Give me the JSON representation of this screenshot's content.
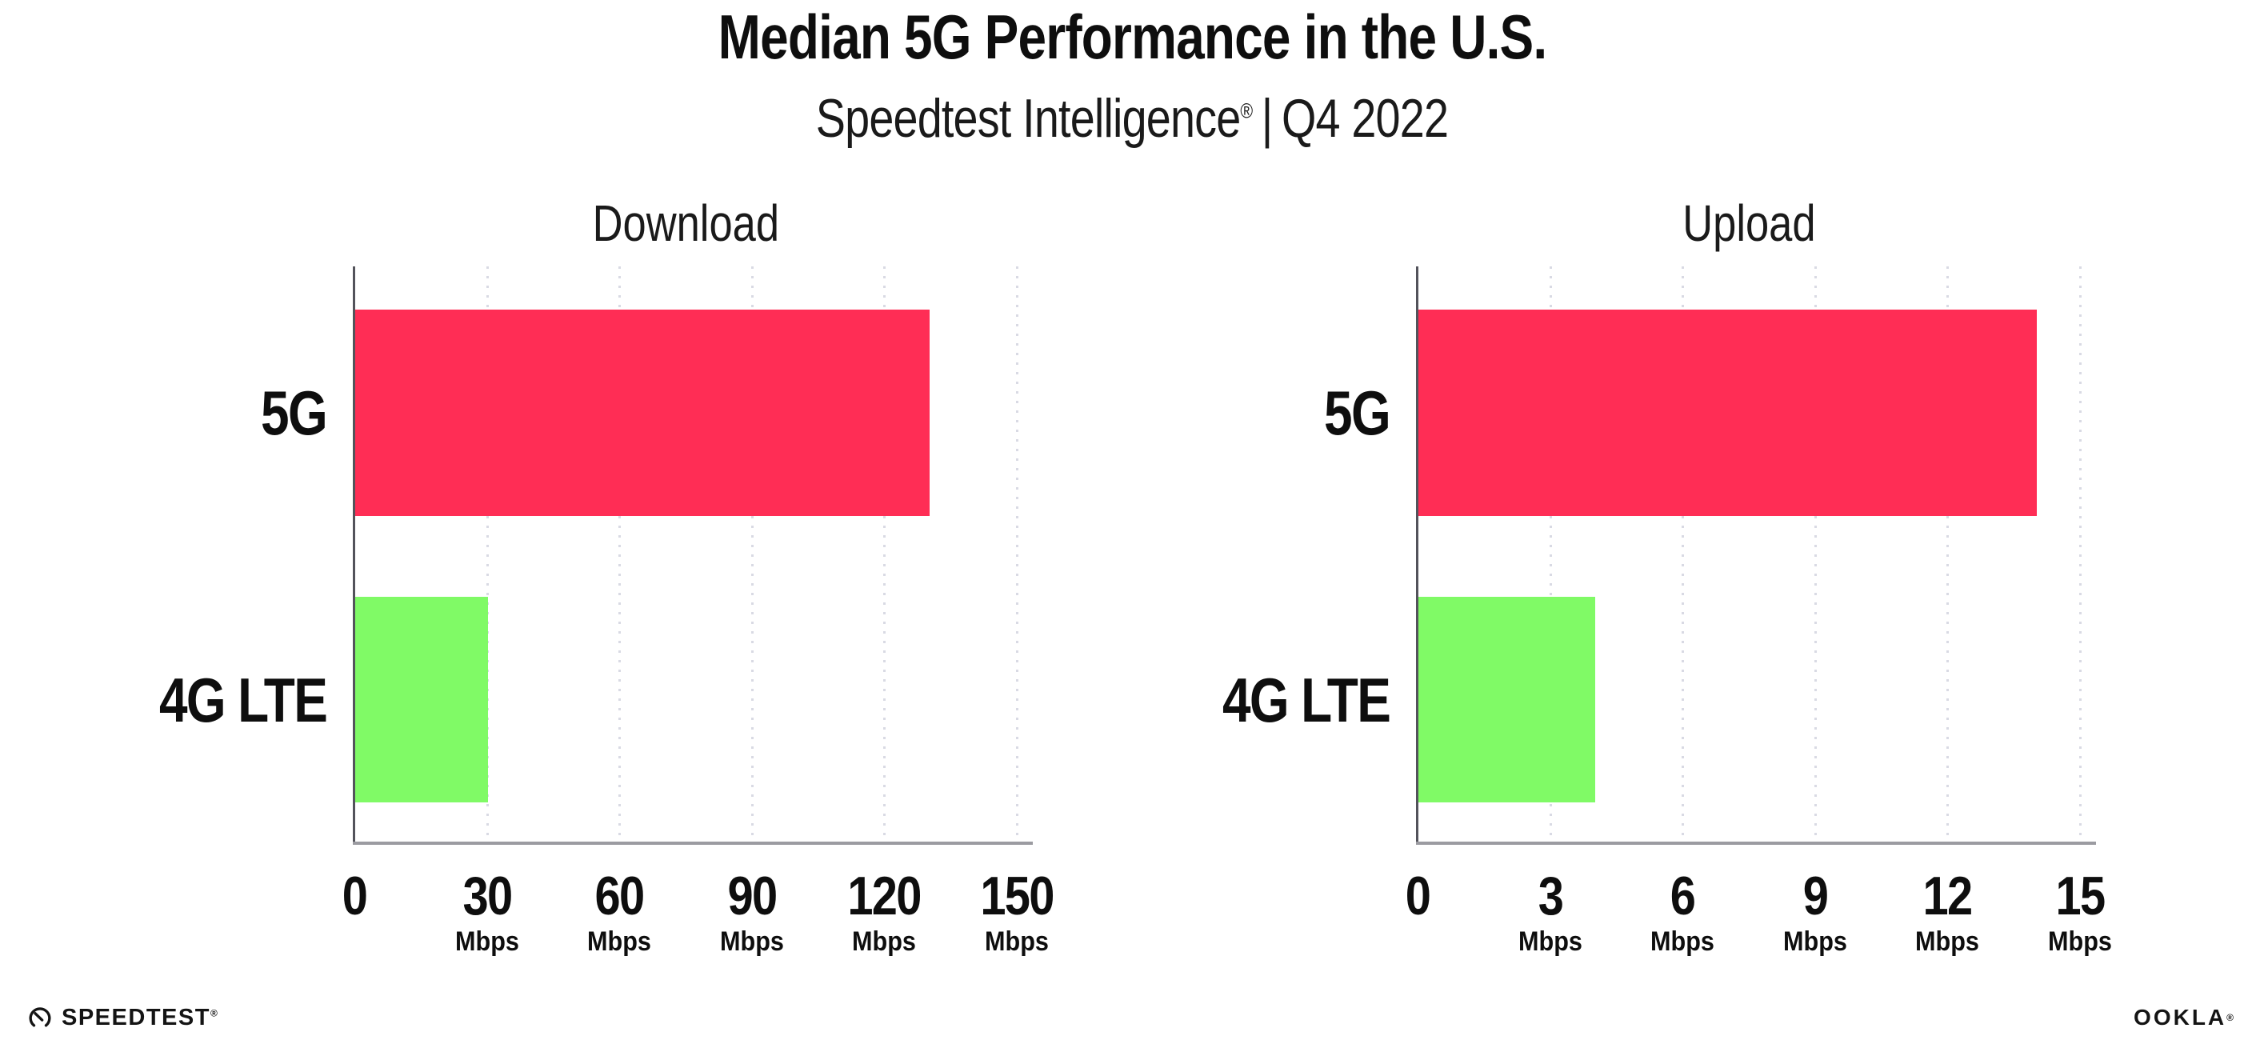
{
  "header": {
    "title": "Median 5G Performance in the U.S.",
    "subtitle_brand": "Speedtest Intelligence",
    "subtitle_reg": "®",
    "subtitle_sep": "|",
    "subtitle_period": "Q4 2022"
  },
  "footer": {
    "speedtest_label": "SPEEDTEST",
    "speedtest_mark": "®",
    "ookla_label": "OOKLA",
    "ookla_mark": "®"
  },
  "colors": {
    "bar_5g": "#FF2D55",
    "bar_4g_lte": "#80FA66",
    "x_axis": "#9B9BA1",
    "y_axis": "#53535B",
    "gridline": "#D9DAE4",
    "text": "#0E0E0E",
    "background": "#FFFFFF"
  },
  "chart_data": [
    {
      "type": "bar",
      "orientation": "horizontal",
      "title": "Download",
      "categories": [
        "5G",
        "4G LTE"
      ],
      "values": [
        130,
        30
      ],
      "unit": "Mbps",
      "xlim": [
        0,
        150
      ],
      "ticks": [
        0,
        30,
        60,
        90,
        120,
        150
      ],
      "tick_unit": "Mbps",
      "bar_colors": [
        "#FF2D55",
        "#80FA66"
      ],
      "grid": "dotted-vertical",
      "legend": "none"
    },
    {
      "type": "bar",
      "orientation": "horizontal",
      "title": "Upload",
      "categories": [
        "5G",
        "4G LTE"
      ],
      "values": [
        14,
        4
      ],
      "unit": "Mbps",
      "xlim": [
        0,
        15
      ],
      "ticks": [
        0,
        3,
        6,
        9,
        12,
        15
      ],
      "tick_unit": "Mbps",
      "bar_colors": [
        "#FF2D55",
        "#80FA66"
      ],
      "grid": "dotted-vertical",
      "legend": "none"
    }
  ]
}
